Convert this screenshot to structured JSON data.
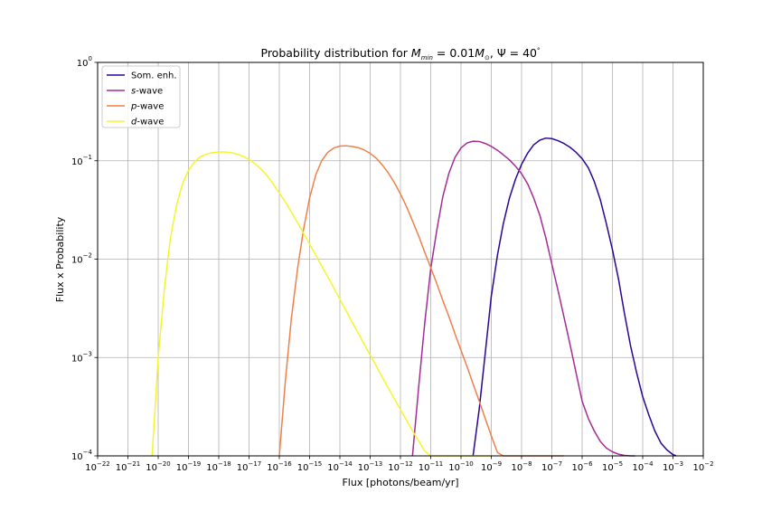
{
  "chart_data": {
    "type": "line",
    "title": "Probability distribution for M_min = 0.01M_⊙, Ψ = 40°",
    "xlabel": "Flux [photons/beam/yr]",
    "ylabel": "Flux x Probability",
    "xscale": "log",
    "yscale": "log",
    "xlim": [
      1e-22,
      0.01
    ],
    "ylim": [
      0.0001,
      1
    ],
    "grid": true,
    "legend_position": "top-left",
    "x_ticks": [
      {
        "base": "10",
        "exp": "−22"
      },
      {
        "base": "10",
        "exp": "−21"
      },
      {
        "base": "10",
        "exp": "−20"
      },
      {
        "base": "10",
        "exp": "−19"
      },
      {
        "base": "10",
        "exp": "−18"
      },
      {
        "base": "10",
        "exp": "−17"
      },
      {
        "base": "10",
        "exp": "−16"
      },
      {
        "base": "10",
        "exp": "−15"
      },
      {
        "base": "10",
        "exp": "−14"
      },
      {
        "base": "10",
        "exp": "−13"
      },
      {
        "base": "10",
        "exp": "−12"
      },
      {
        "base": "10",
        "exp": "−11"
      },
      {
        "base": "10",
        "exp": "−10"
      },
      {
        "base": "10",
        "exp": "−9"
      },
      {
        "base": "10",
        "exp": "−8"
      },
      {
        "base": "10",
        "exp": "−7"
      },
      {
        "base": "10",
        "exp": "−6"
      },
      {
        "base": "10",
        "exp": "−5"
      },
      {
        "base": "10",
        "exp": "−4"
      },
      {
        "base": "10",
        "exp": "−3"
      },
      {
        "base": "10",
        "exp": "−2"
      }
    ],
    "y_ticks": [
      {
        "base": "10",
        "exp": "−4"
      },
      {
        "base": "10",
        "exp": "−3"
      },
      {
        "base": "10",
        "exp": "−2"
      },
      {
        "base": "10",
        "exp": "−1"
      },
      {
        "base": "10",
        "exp": "0"
      }
    ],
    "series": [
      {
        "name": "Som. enh.",
        "color": "#2c0594",
        "x": [
          2.5e-10,
          4e-10,
          6.3e-10,
          1e-09,
          1.6e-09,
          2.5e-09,
          4e-09,
          6.3e-09,
          1e-08,
          1.6e-08,
          2.5e-08,
          4e-08,
          6.3e-08,
          1e-07,
          1.6e-07,
          2.5e-07,
          4e-07,
          6.3e-07,
          1e-06,
          1.6e-06,
          2.5e-06,
          4e-06,
          6.3e-06,
          1e-05,
          1.6e-05,
          2.5e-05,
          4e-05,
          6.3e-05,
          0.0001,
          0.00016,
          0.00025,
          0.0004,
          0.00063,
          0.001,
          0.00126
        ],
        "y": [
          0.0001,
          0.0003,
          0.0011,
          0.0042,
          0.011,
          0.023,
          0.042,
          0.065,
          0.092,
          0.12,
          0.145,
          0.162,
          0.17,
          0.168,
          0.16,
          0.15,
          0.137,
          0.122,
          0.105,
          0.085,
          0.062,
          0.04,
          0.023,
          0.0125,
          0.0062,
          0.0028,
          0.0013,
          0.0007,
          0.0004,
          0.00026,
          0.00018,
          0.000135,
          0.000115,
          0.000103,
          0.0001
        ]
      },
      {
        "name": "s-wave",
        "color": "#a52c96",
        "x": [
          2.5e-12,
          4e-12,
          6.3e-12,
          1e-11,
          1.6e-11,
          2.5e-11,
          4e-11,
          6.3e-11,
          1e-10,
          1.6e-10,
          2.5e-10,
          4e-10,
          6.3e-10,
          1e-09,
          1.6e-09,
          2.5e-09,
          4e-09,
          6.3e-09,
          1e-08,
          1.6e-08,
          2.5e-08,
          4e-08,
          6.3e-08,
          1e-07,
          1.6e-07,
          2.5e-07,
          4e-07,
          6.3e-07,
          1e-06,
          1.6e-06,
          2.5e-06,
          4e-06,
          6.3e-06,
          1e-05,
          1.6e-05,
          2.5e-05,
          4e-05,
          5.6e-05
        ],
        "y": [
          0.0001,
          0.0005,
          0.0022,
          0.008,
          0.02,
          0.043,
          0.075,
          0.108,
          0.135,
          0.152,
          0.158,
          0.157,
          0.15,
          0.14,
          0.128,
          0.115,
          0.102,
          0.088,
          0.074,
          0.058,
          0.042,
          0.028,
          0.0165,
          0.0089,
          0.0048,
          0.0026,
          0.00135,
          0.0007,
          0.00036,
          0.00024,
          0.00018,
          0.00014,
          0.00012,
          0.00011,
          0.000104,
          0.000101,
          0.0001,
          0.0001
        ]
      },
      {
        "name": "p-wave",
        "color": "#f0804a",
        "x": [
          1e-16,
          1.6e-16,
          2.5e-16,
          4e-16,
          6.3e-16,
          1e-15,
          1.6e-15,
          2.5e-15,
          4e-15,
          6.3e-15,
          1e-14,
          1.6e-14,
          2.5e-14,
          4e-14,
          6.3e-14,
          1e-13,
          1.6e-13,
          2.5e-13,
          4e-13,
          6.3e-13,
          1e-12,
          1.6e-12,
          2.5e-12,
          4e-12,
          6.3e-12,
          1e-11,
          1.6e-11,
          2.5e-11,
          4e-11,
          6.3e-11,
          1e-10,
          1.6e-10,
          2.5e-10,
          4e-10,
          6.3e-10,
          1e-09,
          1.6e-09,
          2.5e-09,
          4e-09,
          6.3e-09,
          1e-08,
          1.6e-08,
          2.5e-08,
          4e-08,
          6.3e-08,
          1e-07,
          1.6e-07,
          2.5e-07
        ],
        "y": [
          0.0001,
          0.0006,
          0.0025,
          0.008,
          0.02,
          0.042,
          0.072,
          0.1,
          0.122,
          0.135,
          0.141,
          0.142,
          0.14,
          0.136,
          0.129,
          0.119,
          0.106,
          0.091,
          0.075,
          0.06,
          0.046,
          0.034,
          0.0245,
          0.0172,
          0.0118,
          0.0082,
          0.0056,
          0.0038,
          0.0026,
          0.00175,
          0.00118,
          0.0008,
          0.00054,
          0.00036,
          0.00024,
          0.00016,
          0.000108,
          0.0001,
          0.0001,
          0.0001,
          0.0001,
          0.0001,
          0.0001,
          0.0001,
          0.0001,
          0.0001,
          0.0001,
          0.0001
        ]
      },
      {
        "name": "d-wave",
        "color": "#f5f52a",
        "x": [
          6.3e-21,
          1e-20,
          1.6e-20,
          2.5e-20,
          4e-20,
          6.3e-20,
          1e-19,
          1.6e-19,
          2.5e-19,
          4e-19,
          6.3e-19,
          1e-18,
          1.6e-18,
          2.5e-18,
          4e-18,
          6.3e-18,
          1e-17,
          1.6e-17,
          2.5e-17,
          4e-17,
          6.3e-17,
          1e-16,
          1.6e-16,
          2.5e-16,
          4e-16,
          6.3e-16,
          1e-15,
          1.6e-15,
          2.5e-15,
          4e-15,
          6.3e-15,
          1e-14,
          1.6e-14,
          2.5e-14,
          4e-14,
          6.3e-14,
          1e-13,
          1.6e-13,
          2.5e-13,
          4e-13,
          6.3e-13,
          1e-12,
          1.6e-12,
          2.5e-12,
          4e-12,
          6.3e-12,
          1e-11,
          1.6e-11,
          2.5e-11,
          4e-11,
          6.3e-11,
          1e-10,
          1.6e-10,
          2.5e-10,
          4e-10,
          6.3e-10,
          1e-09
        ],
        "y": [
          0.0001,
          0.001,
          0.005,
          0.016,
          0.035,
          0.058,
          0.08,
          0.098,
          0.11,
          0.117,
          0.121,
          0.123,
          0.123,
          0.121,
          0.117,
          0.111,
          0.103,
          0.093,
          0.082,
          0.07,
          0.058,
          0.047,
          0.038,
          0.03,
          0.0235,
          0.0183,
          0.0142,
          0.011,
          0.0085,
          0.0066,
          0.0051,
          0.0039,
          0.003,
          0.0023,
          0.00178,
          0.00137,
          0.00106,
          0.00082,
          0.00063,
          0.00049,
          0.00038,
          0.000295,
          0.00023,
          0.00018,
          0.000142,
          0.000112,
          0.0001,
          0.0001,
          0.0001,
          0.0001,
          0.0001,
          0.0001,
          0.0001,
          0.0001,
          0.0001,
          0.0001,
          0.0001
        ]
      }
    ]
  },
  "title_parts": {
    "prefix": "Probability distribution for ",
    "mmin_symbol": "M",
    "mmin_sub": "min",
    "equals_value": " = 0.01",
    "msun_symbol": "M",
    "msun_sub": "⊙",
    "separator": ", ",
    "psi": "Ψ",
    "psi_value": " = 40",
    "degree": "°"
  },
  "legend": {
    "items": [
      {
        "italic": "",
        "text": "Som. enh."
      },
      {
        "italic": "s",
        "text": "-wave"
      },
      {
        "italic": "p",
        "text": "-wave"
      },
      {
        "italic": "d",
        "text": "-wave"
      }
    ]
  }
}
